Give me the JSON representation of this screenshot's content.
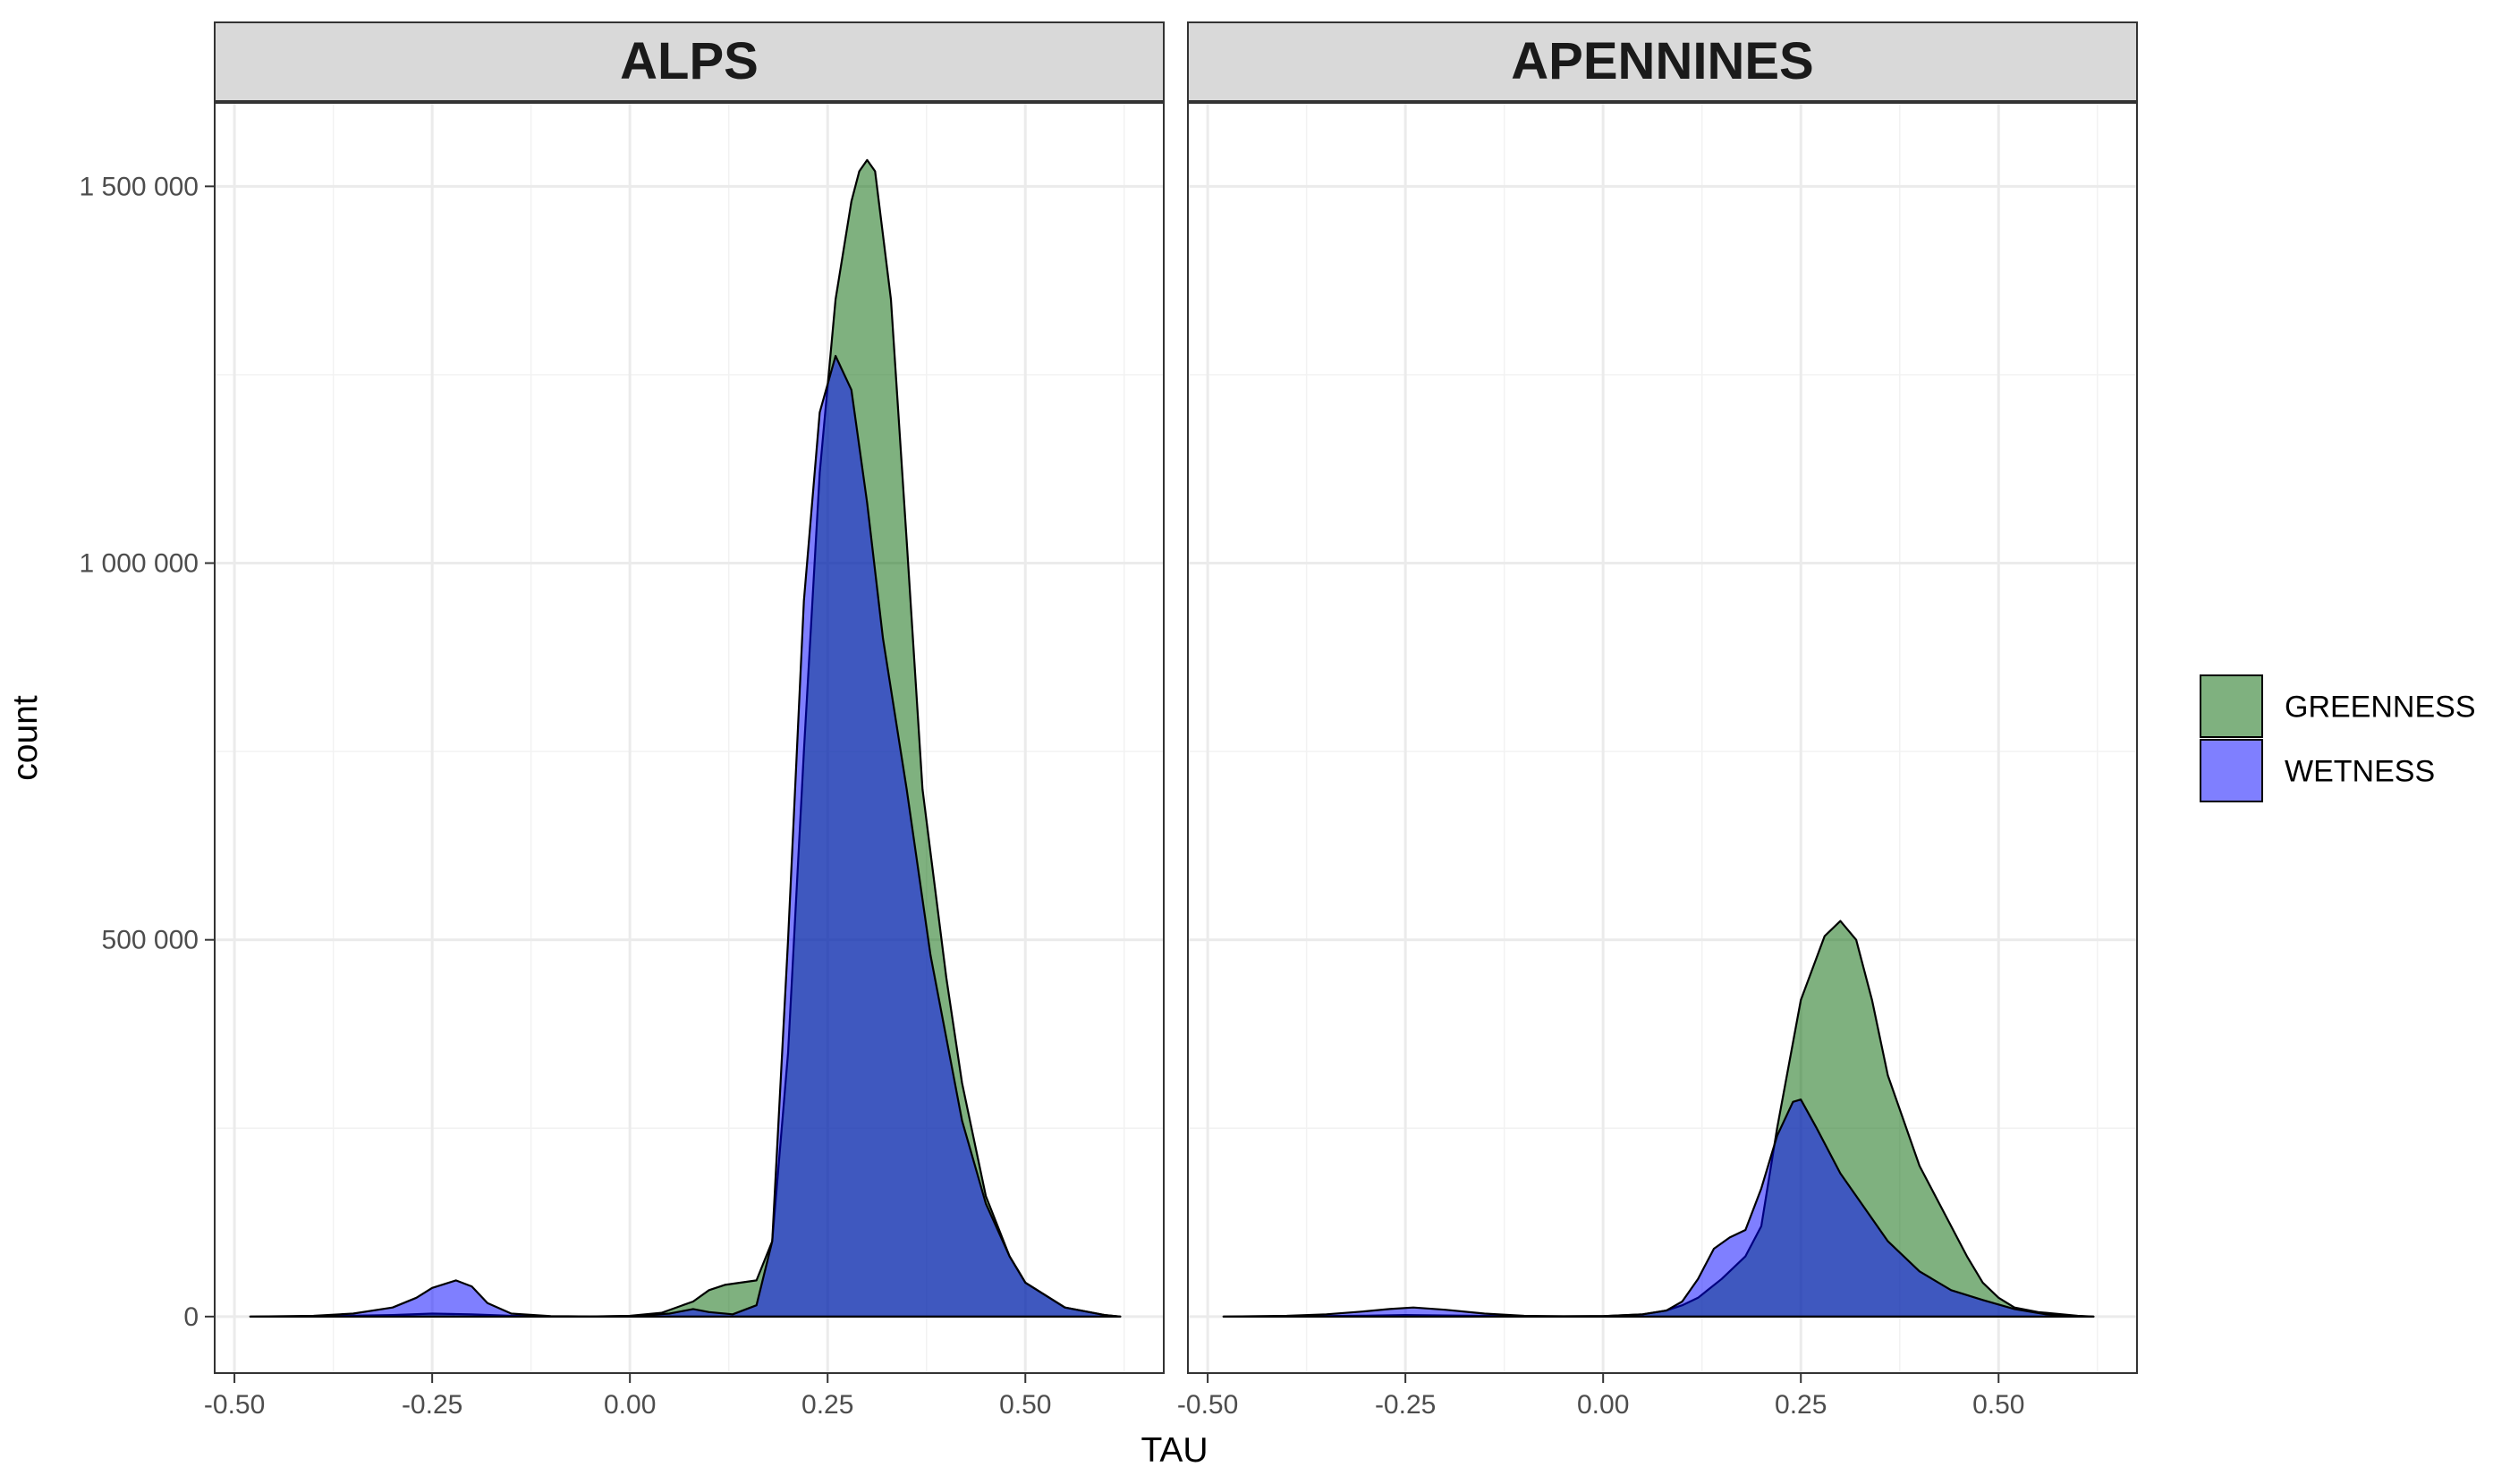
{
  "chart_data": {
    "type": "area",
    "subtype": "faceted-density",
    "xlabel": "TAU",
    "ylabel": "count",
    "xlim": [
      -0.525,
      0.675
    ],
    "ylim": [
      -75000,
      1612000
    ],
    "x_ticks": [
      -0.5,
      -0.25,
      0.0,
      0.25,
      0.5
    ],
    "x_tick_labels": [
      "-0.50",
      "-0.25",
      "0.00",
      "0.25",
      "0.50"
    ],
    "y_ticks": [
      0,
      500000,
      1000000,
      1500000
    ],
    "y_tick_labels": [
      "0",
      "500 000",
      "1 000 000",
      "1 500 000"
    ],
    "grid": true,
    "legend_position": "right",
    "legend": [
      {
        "name": "GREENNESS",
        "color": "#006400"
      },
      {
        "name": "WETNESS",
        "color": "#0000ff"
      }
    ],
    "fill_alpha": 0.5,
    "panels": [
      {
        "title": "ALPS",
        "series": [
          {
            "name": "GREENNESS",
            "color": "#006400",
            "points": [
              [
                -0.48,
                0
              ],
              [
                -0.4,
                300
              ],
              [
                -0.3,
                2000
              ],
              [
                -0.25,
                4000
              ],
              [
                -0.2,
                3000
              ],
              [
                -0.15,
                1000
              ],
              [
                -0.1,
                300
              ],
              [
                -0.05,
                200
              ],
              [
                0.0,
                1000
              ],
              [
                0.04,
                5000
              ],
              [
                0.08,
                20000
              ],
              [
                0.1,
                35000
              ],
              [
                0.12,
                42000
              ],
              [
                0.14,
                45000
              ],
              [
                0.16,
                48000
              ],
              [
                0.18,
                100000
              ],
              [
                0.2,
                350000
              ],
              [
                0.22,
                750000
              ],
              [
                0.24,
                1120000
              ],
              [
                0.26,
                1350000
              ],
              [
                0.28,
                1480000
              ],
              [
                0.29,
                1520000
              ],
              [
                0.3,
                1535000
              ],
              [
                0.31,
                1520000
              ],
              [
                0.33,
                1350000
              ],
              [
                0.35,
                1030000
              ],
              [
                0.37,
                700000
              ],
              [
                0.4,
                450000
              ],
              [
                0.42,
                310000
              ],
              [
                0.45,
                160000
              ],
              [
                0.48,
                80000
              ],
              [
                0.5,
                45000
              ],
              [
                0.55,
                12000
              ],
              [
                0.6,
                2000
              ],
              [
                0.62,
                0
              ]
            ]
          },
          {
            "name": "WETNESS",
            "color": "#0000ff",
            "points": [
              [
                -0.48,
                0
              ],
              [
                -0.4,
                1000
              ],
              [
                -0.35,
                4000
              ],
              [
                -0.3,
                12000
              ],
              [
                -0.27,
                25000
              ],
              [
                -0.25,
                38000
              ],
              [
                -0.22,
                48000
              ],
              [
                -0.2,
                40000
              ],
              [
                -0.18,
                18000
              ],
              [
                -0.15,
                4000
              ],
              [
                -0.1,
                500
              ],
              [
                -0.05,
                200
              ],
              [
                0.0,
                500
              ],
              [
                0.05,
                4000
              ],
              [
                0.08,
                10000
              ],
              [
                0.1,
                6000
              ],
              [
                0.13,
                3000
              ],
              [
                0.16,
                15000
              ],
              [
                0.18,
                100000
              ],
              [
                0.2,
                500000
              ],
              [
                0.22,
                950000
              ],
              [
                0.24,
                1200000
              ],
              [
                0.26,
                1275000
              ],
              [
                0.28,
                1230000
              ],
              [
                0.3,
                1080000
              ],
              [
                0.32,
                900000
              ],
              [
                0.35,
                700000
              ],
              [
                0.38,
                480000
              ],
              [
                0.4,
                370000
              ],
              [
                0.42,
                260000
              ],
              [
                0.45,
                150000
              ],
              [
                0.48,
                80000
              ],
              [
                0.5,
                45000
              ],
              [
                0.55,
                12000
              ],
              [
                0.6,
                2000
              ],
              [
                0.62,
                0
              ]
            ]
          }
        ]
      },
      {
        "title": "APENNINES",
        "series": [
          {
            "name": "GREENNESS",
            "color": "#006400",
            "points": [
              [
                -0.48,
                0
              ],
              [
                -0.4,
                300
              ],
              [
                -0.3,
                1200
              ],
              [
                -0.25,
                2000
              ],
              [
                -0.2,
                1500
              ],
              [
                -0.1,
                400
              ],
              [
                0.0,
                600
              ],
              [
                0.05,
                3000
              ],
              [
                0.08,
                8000
              ],
              [
                0.1,
                15000
              ],
              [
                0.12,
                25000
              ],
              [
                0.15,
                50000
              ],
              [
                0.18,
                80000
              ],
              [
                0.2,
                120000
              ],
              [
                0.22,
                250000
              ],
              [
                0.25,
                420000
              ],
              [
                0.28,
                505000
              ],
              [
                0.3,
                525000
              ],
              [
                0.32,
                500000
              ],
              [
                0.34,
                420000
              ],
              [
                0.36,
                320000
              ],
              [
                0.38,
                260000
              ],
              [
                0.4,
                200000
              ],
              [
                0.43,
                140000
              ],
              [
                0.46,
                80000
              ],
              [
                0.48,
                45000
              ],
              [
                0.5,
                25000
              ],
              [
                0.52,
                12000
              ],
              [
                0.55,
                6000
              ],
              [
                0.6,
                1000
              ],
              [
                0.62,
                0
              ]
            ]
          },
          {
            "name": "WETNESS",
            "color": "#0000ff",
            "points": [
              [
                -0.48,
                0
              ],
              [
                -0.4,
                1000
              ],
              [
                -0.35,
                3000
              ],
              [
                -0.3,
                7000
              ],
              [
                -0.27,
                10000
              ],
              [
                -0.24,
                12000
              ],
              [
                -0.2,
                9000
              ],
              [
                -0.15,
                4000
              ],
              [
                -0.1,
                1000
              ],
              [
                -0.05,
                300
              ],
              [
                0.0,
                600
              ],
              [
                0.05,
                3000
              ],
              [
                0.08,
                8000
              ],
              [
                0.1,
                20000
              ],
              [
                0.12,
                50000
              ],
              [
                0.14,
                90000
              ],
              [
                0.16,
                105000
              ],
              [
                0.18,
                115000
              ],
              [
                0.2,
                170000
              ],
              [
                0.22,
                240000
              ],
              [
                0.24,
                285000
              ],
              [
                0.25,
                288000
              ],
              [
                0.27,
                250000
              ],
              [
                0.3,
                190000
              ],
              [
                0.33,
                145000
              ],
              [
                0.36,
                100000
              ],
              [
                0.4,
                60000
              ],
              [
                0.44,
                35000
              ],
              [
                0.48,
                22000
              ],
              [
                0.52,
                10000
              ],
              [
                0.56,
                3000
              ],
              [
                0.6,
                500
              ],
              [
                0.62,
                0
              ]
            ]
          }
        ]
      }
    ]
  }
}
